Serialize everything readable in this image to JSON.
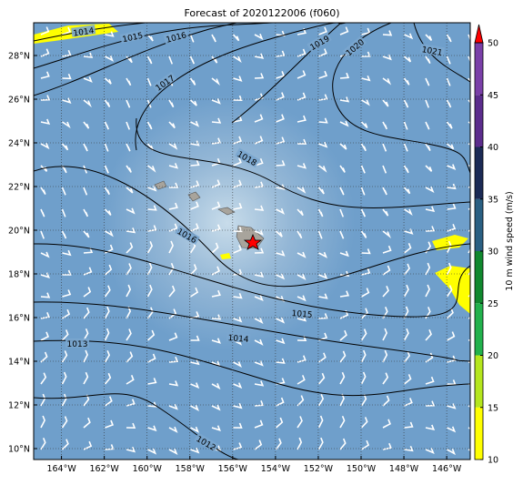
{
  "map": {
    "title": "Forecast of 2020122006 (f060)",
    "lonlim": [
      -165.3,
      -144.9
    ],
    "latlim": [
      9.5,
      29.5
    ],
    "lonticks": [
      {
        "value": -164,
        "label": "164°W"
      },
      {
        "value": -162,
        "label": "162°W"
      },
      {
        "value": -160,
        "label": "160°W"
      },
      {
        "value": -158,
        "label": "158°W"
      },
      {
        "value": -156,
        "label": "156°W"
      },
      {
        "value": -154,
        "label": "154°W"
      },
      {
        "value": -152,
        "label": "152°W"
      },
      {
        "value": -150,
        "label": "150°W"
      },
      {
        "value": -148,
        "label": "148°W"
      },
      {
        "value": -146,
        "label": "146°W"
      }
    ],
    "latticks": [
      {
        "value": 10,
        "label": "10°N"
      },
      {
        "value": 12,
        "label": "12°N"
      },
      {
        "value": 14,
        "label": "14°N"
      },
      {
        "value": 16,
        "label": "16°N"
      },
      {
        "value": 18,
        "label": "18°N"
      },
      {
        "value": 20,
        "label": "20°N"
      },
      {
        "value": 22,
        "label": "22°N"
      },
      {
        "value": 24,
        "label": "24°N"
      },
      {
        "value": 26,
        "label": "26°N"
      },
      {
        "value": 28,
        "label": "28°N"
      }
    ],
    "grid": true,
    "colorbar": {
      "label": "10 m wind speed (m/s)",
      "lim": [
        10,
        50
      ],
      "ticks": [
        10,
        15,
        20,
        25,
        30,
        35,
        40,
        45,
        50
      ],
      "colors": [
        "#ffff00",
        "#b5e61d",
        "#22b14c",
        "#10882e",
        "#2a5f82",
        "#1b2a55",
        "#5b2c8c",
        "#7a3fa8"
      ],
      "extend_color": "#ff0000"
    },
    "isobar_labels": [
      1014,
      1015,
      1016,
      1017,
      1019,
      1020,
      1021,
      1018,
      1016,
      1015,
      1014,
      1013,
      1012
    ]
  }
}
